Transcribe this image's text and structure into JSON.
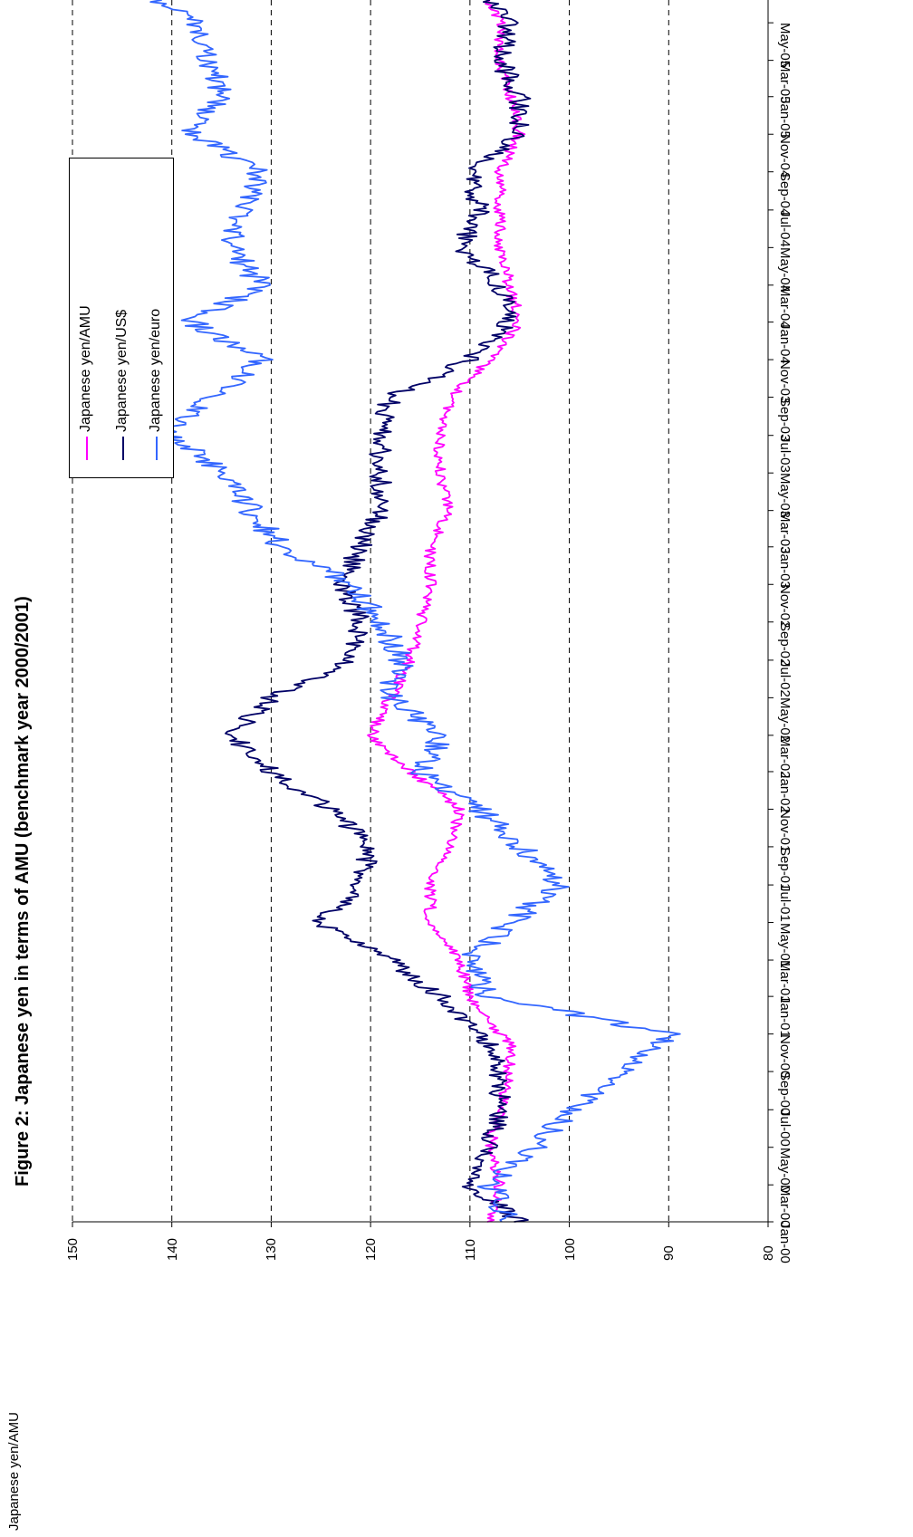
{
  "chart_data": {
    "type": "line",
    "title": "Figure 2: Japanese yen in terms of AMU (benchmark year 2000/2001)",
    "ylabel": "Japanese yen/AMU",
    "ylim": [
      80,
      150
    ],
    "yticks": [
      "80",
      "90",
      "100",
      "110",
      "120",
      "130",
      "140",
      "150"
    ],
    "xlim": [
      "2000-01-01",
      "2005-06-07"
    ],
    "xtick_labels": [
      "Jan-00",
      "Mar-00",
      "May-00",
      "Jul-00",
      "Sep-00",
      "Nov-00",
      "Jan-01",
      "Mar-01",
      "May-01",
      "Jul-01",
      "Sep-01",
      "Nov-01",
      "Jan-02",
      "Mar-02",
      "May-02",
      "Jul-02",
      "Sep-02",
      "Nov-02",
      "Jan-03",
      "Mar-03",
      "May-03",
      "Jul-03",
      "Sep-03",
      "Nov-03",
      "Jan-04",
      "Mar-04",
      "May-04",
      "Jul-04",
      "Sep-04",
      "Nov-04",
      "Jan-05",
      "Mar-05",
      "May-05"
    ],
    "x": [
      "2000-01-01",
      "2000-03-01",
      "2000-05-01",
      "2000-07-01",
      "2000-09-01",
      "2000-10-15",
      "2000-11-01",
      "2001-01-01",
      "2001-03-01",
      "2001-05-01",
      "2001-07-01",
      "2001-09-01",
      "2001-11-01",
      "2002-01-01",
      "2002-03-01",
      "2002-05-01",
      "2002-07-01",
      "2002-09-01",
      "2002-11-01",
      "2003-01-01",
      "2003-03-01",
      "2003-05-01",
      "2003-07-01",
      "2003-09-01",
      "2003-11-01",
      "2004-01-01",
      "2004-03-01",
      "2004-05-01",
      "2004-07-01",
      "2004-09-01",
      "2004-11-01",
      "2005-01-01",
      "2005-03-01",
      "2005-05-01",
      "2005-06-07"
    ],
    "series": [
      {
        "name": "Japanese yen/AMU",
        "color": "#ff00ff",
        "values": [
          108,
          107,
          108,
          107,
          106,
          106,
          107,
          110,
          111,
          114,
          114,
          112,
          111,
          116,
          120,
          118,
          116,
          115,
          114,
          114,
          112,
          113,
          113,
          112,
          108,
          105,
          106,
          107,
          107,
          107,
          105,
          106,
          107,
          107,
          108
        ]
      },
      {
        "name": "Japanese yen/US$",
        "color": "#000066",
        "values": [
          105,
          110,
          108,
          107,
          107,
          108,
          109,
          113,
          118,
          125,
          121,
          120,
          124,
          130,
          134,
          130,
          122,
          121,
          123,
          121,
          119,
          119,
          119,
          118,
          110,
          106,
          107,
          111,
          109,
          110,
          105,
          105,
          107,
          106,
          108
        ]
      },
      {
        "name": "Japanese yen/euro",
        "color": "#3366ff",
        "values": [
          106,
          108,
          103,
          100,
          95,
          91,
          90,
          108,
          110,
          106,
          101,
          105,
          109,
          115,
          113,
          118,
          117,
          119,
          122,
          129,
          132,
          135,
          140,
          136,
          131,
          138,
          131,
          134,
          133,
          131,
          138,
          135,
          136,
          138,
          141
        ]
      }
    ],
    "legend": {
      "location": "upper-left",
      "entries": [
        "Japanese yen/AMU",
        "Japanese yen/US$",
        "Japanese yen/euro"
      ]
    },
    "grid": {
      "y": true,
      "x": false,
      "style": "dashed"
    }
  }
}
